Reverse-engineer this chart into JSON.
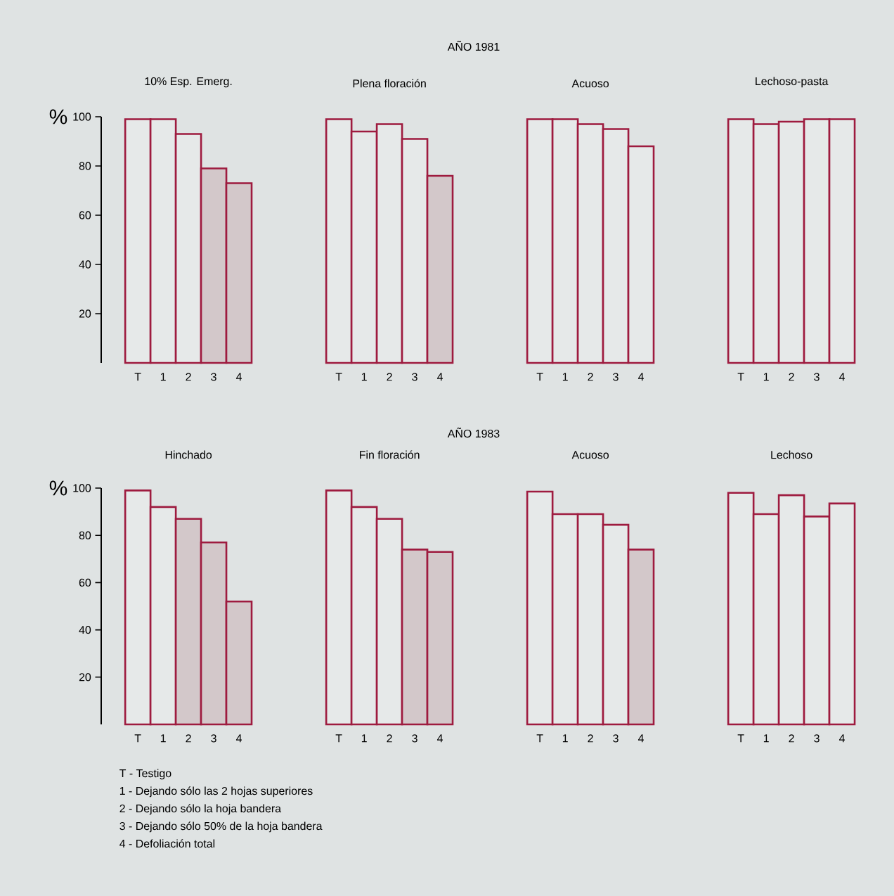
{
  "chart_data": [
    {
      "type": "bar",
      "title": "10% Esp. Emerg.",
      "ylabel": "%",
      "categories": [
        "T",
        "1",
        "2",
        "3",
        "4"
      ],
      "values": [
        99,
        99,
        93,
        79,
        73
      ],
      "color": "#9e1b3f",
      "colors": [
        "#e6e9e9",
        "#e6e9e9",
        "#e6e9e9",
        "#d3c8ca",
        "#d3c8ca"
      ],
      "ylim": [
        0,
        100
      ],
      "yticks": [
        20,
        40,
        60,
        80,
        100
      ],
      "annotations": [
        "AÑO 1981"
      ]
    },
    {
      "type": "bar",
      "title": "Plena floración",
      "categories": [
        "T",
        "1",
        "2",
        "3",
        "4"
      ],
      "values": [
        99,
        94,
        97,
        91,
        76
      ],
      "color": "#9e1b3f",
      "colors": [
        "#e6e9e9",
        "#e6e9e9",
        "#e6e9e9",
        "#e6e9e9",
        "#d3c8ca"
      ],
      "ylim": [
        0,
        100
      ],
      "tick_labels": "x"
    },
    {
      "type": "bar",
      "title": "Acuoso",
      "categories": [
        "T",
        "1",
        "2",
        "3",
        "4"
      ],
      "values": [
        99,
        99,
        97,
        95,
        88
      ],
      "color": "#9e1b3f",
      "colors": [
        "#e6e9e9",
        "#e6e9e9",
        "#e6e9e9",
        "#e6e9e9",
        "#e6e9e9"
      ],
      "ylim": [
        0,
        100
      ],
      "tick_labels": "x"
    },
    {
      "type": "bar",
      "title": "Lechoso-pasta",
      "categories": [
        "T",
        "1",
        "2",
        "3",
        "4"
      ],
      "values": [
        99,
        97,
        98,
        99,
        99
      ],
      "color": "#9e1b3f",
      "colors": [
        "#e6e9e9",
        "#e6e9e9",
        "#e6e9e9",
        "#e6e9e9",
        "#e6e9e9"
      ],
      "ylim": [
        0,
        100
      ],
      "tick_labels": "x"
    },
    {
      "type": "bar",
      "title": "Hinchado",
      "ylabel": "%",
      "categories": [
        "T",
        "1",
        "2",
        "3",
        "4"
      ],
      "values": [
        99,
        92,
        87,
        77,
        52
      ],
      "color": "#9e1b3f",
      "colors": [
        "#e6e9e9",
        "#e6e9e9",
        "#d3c8ca",
        "#d3c8ca",
        "#d3c8ca"
      ],
      "ylim": [
        0,
        100
      ],
      "yticks": [
        20,
        40,
        60,
        80,
        100
      ],
      "annotations": [
        "AÑO 1983",
        "T - Testigo",
        "1 - Dejando sólo las 2 hojas superiores",
        "2 - Dejando sólo la hoja bandera",
        "3 - Dejando sólo 50% de la hoja bandera",
        "4 - Defoliación total"
      ]
    },
    {
      "type": "bar",
      "title": "Fin floración",
      "categories": [
        "T",
        "1",
        "2",
        "3",
        "4"
      ],
      "values": [
        99,
        92,
        87,
        74,
        73
      ],
      "color": "#9e1b3f",
      "colors": [
        "#e6e9e9",
        "#e6e9e9",
        "#e6e9e9",
        "#d3c8ca",
        "#d3c8ca"
      ],
      "ylim": [
        0,
        100
      ],
      "tick_labels": "x"
    },
    {
      "type": "bar",
      "title": "Acuoso",
      "categories": [
        "T",
        "1",
        "2",
        "3",
        "4"
      ],
      "values": [
        98.5,
        89,
        89,
        84.5,
        74
      ],
      "color": "#9e1b3f",
      "colors": [
        "#e6e9e9",
        "#e6e9e9",
        "#e6e9e9",
        "#e6e9e9",
        "#d3c8ca"
      ],
      "ylim": [
        0,
        100
      ],
      "tick_labels": "x"
    },
    {
      "type": "bar",
      "title": "Lechoso",
      "categories": [
        "T",
        "1",
        "2",
        "3",
        "4"
      ],
      "values": [
        98,
        89,
        97,
        88,
        93.5
      ],
      "color": "#9e1b3f",
      "colors": [
        "#e6e9e9",
        "#e6e9e9",
        "#e6e9e9",
        "#e6e9e9",
        "#e6e9e9"
      ],
      "ylim": [
        0,
        100
      ],
      "tick_labels": "x"
    }
  ]
}
